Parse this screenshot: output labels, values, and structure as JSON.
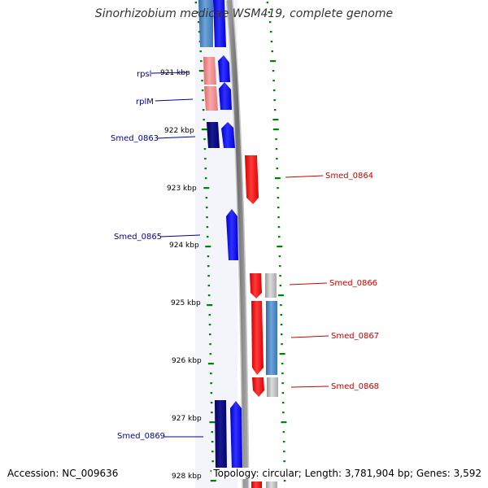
{
  "title": "Sinorhizobium medicae WSM419, complete genome",
  "accession": "Accession: NC_009636",
  "summary": "Topology: circular; Length: 3,781,904 bp; Genes: 3,592",
  "colors": {
    "forward_gene": "#0000ff",
    "forward_gene_dark": "#00007a",
    "forward_cds_light": "#3a7bbf",
    "reverse_gene": "#ff0000",
    "reverse_cds_light": "#f08080",
    "grey_feature": "#b0b0b0",
    "label_blue": "#00009c",
    "label_red": "#cc0000",
    "ruler_green": "#008000",
    "backbone": "#888888"
  },
  "ruler_labels": [
    "921 kbp",
    "922 kbp",
    "923 kbp",
    "924 kbp",
    "925 kbp",
    "926 kbp",
    "927 kbp",
    "928 kbp"
  ],
  "gene_labels": {
    "rpsl": "rpsl",
    "rplM": "rplM",
    "smed_0863": "Smed_0863",
    "smed_0864": "Smed_0864",
    "smed_0865": "Smed_0865",
    "smed_0866": "Smed_0866",
    "smed_0867": "Smed_0867",
    "smed_0868": "Smed_0868",
    "smed_0869": "Smed_0869"
  }
}
